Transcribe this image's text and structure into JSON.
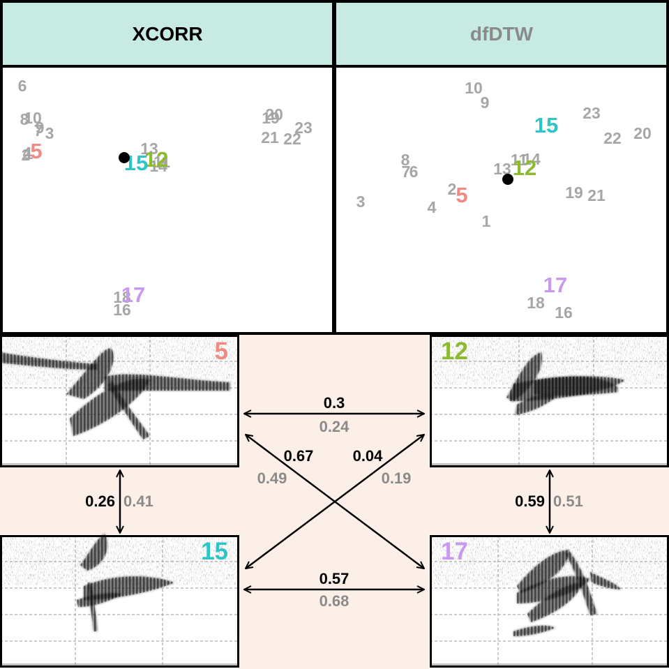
{
  "headers": {
    "left": "XCORR",
    "right": "dfDTW"
  },
  "colors": {
    "header_bg": "#c7ebe3",
    "cream_bg": "#fbefe8",
    "gray_label": "#a6a6a6",
    "highlight": {
      "5": "#f08a82",
      "12": "#8cbb32",
      "15": "#2fc4c8",
      "17": "#c79af0"
    },
    "dot": "#000000"
  },
  "xcorr_points": [
    {
      "label": "6"
    },
    {
      "label": "8"
    },
    {
      "label": "10"
    },
    {
      "label": "9"
    },
    {
      "label": "7"
    },
    {
      "label": "3"
    },
    {
      "label": "4"
    },
    {
      "label": "2"
    },
    {
      "label": "1"
    },
    {
      "label": "5",
      "highlight": true
    },
    {
      "label": "13"
    },
    {
      "label": "11"
    },
    {
      "label": "14"
    },
    {
      "label": "12",
      "highlight": true
    },
    {
      "label": "15",
      "highlight": true
    },
    {
      "label": "19"
    },
    {
      "label": "20"
    },
    {
      "label": "21"
    },
    {
      "label": "22"
    },
    {
      "label": "23"
    },
    {
      "label": "18"
    },
    {
      "label": "16"
    },
    {
      "label": "17",
      "highlight": true
    }
  ],
  "dfdtw_points": [
    {
      "label": "10"
    },
    {
      "label": "9"
    },
    {
      "label": "15",
      "highlight": true
    },
    {
      "label": "23"
    },
    {
      "label": "20"
    },
    {
      "label": "22"
    },
    {
      "label": "8"
    },
    {
      "label": "7"
    },
    {
      "label": "6"
    },
    {
      "label": "11"
    },
    {
      "label": "14"
    },
    {
      "label": "13"
    },
    {
      "label": "12",
      "highlight": true
    },
    {
      "label": "2"
    },
    {
      "label": "5",
      "highlight": true
    },
    {
      "label": "19"
    },
    {
      "label": "21"
    },
    {
      "label": "3"
    },
    {
      "label": "4"
    },
    {
      "label": "1"
    },
    {
      "label": "17",
      "highlight": true
    },
    {
      "label": "18"
    },
    {
      "label": "16"
    }
  ],
  "spectrograms": [
    {
      "id": "tl",
      "label": "5"
    },
    {
      "id": "tr",
      "label": "12"
    },
    {
      "id": "bl",
      "label": "15"
    },
    {
      "id": "br",
      "label": "17"
    }
  ],
  "links": [
    {
      "id": "5-12",
      "xcorr": "0.3",
      "dfdtw": "0.24"
    },
    {
      "id": "5-17",
      "xcorr": "0.67",
      "dfdtw": "0.49"
    },
    {
      "id": "15-12",
      "xcorr": "0.04",
      "dfdtw": "0.19"
    },
    {
      "id": "5-15",
      "xcorr": "0.26",
      "dfdtw": "0.41"
    },
    {
      "id": "12-17",
      "xcorr": "0.59",
      "dfdtw": "0.51"
    },
    {
      "id": "15-17",
      "xcorr": "0.57",
      "dfdtw": "0.68"
    }
  ]
}
